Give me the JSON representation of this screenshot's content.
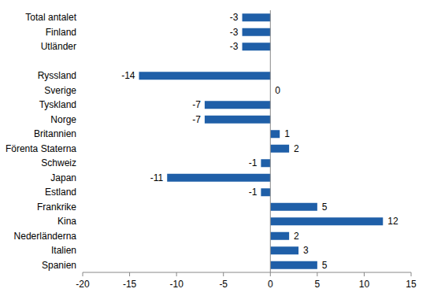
{
  "chart_data": {
    "type": "bar",
    "orientation": "horizontal",
    "categories": [
      "Total antalet",
      "Finland",
      "Utländer",
      null,
      "Ryssland",
      "Sverige",
      "Tyskland",
      "Norge",
      "Britannien",
      "Förenta Staterna",
      "Schweiz",
      "Japan",
      "Estland",
      "Frankrike",
      "Kina",
      "Nederländerna",
      "Italien",
      "Spanien"
    ],
    "values": [
      -3,
      -3,
      -3,
      null,
      -14,
      0,
      -7,
      -7,
      1,
      2,
      -1,
      -11,
      -1,
      5,
      12,
      2,
      3,
      5
    ],
    "color": "#1f5fa8",
    "xlim": [
      -20,
      15
    ],
    "xticks": [
      -20,
      -15,
      -10,
      -5,
      0,
      5,
      10,
      15
    ],
    "grid": false,
    "data_labels": true
  }
}
